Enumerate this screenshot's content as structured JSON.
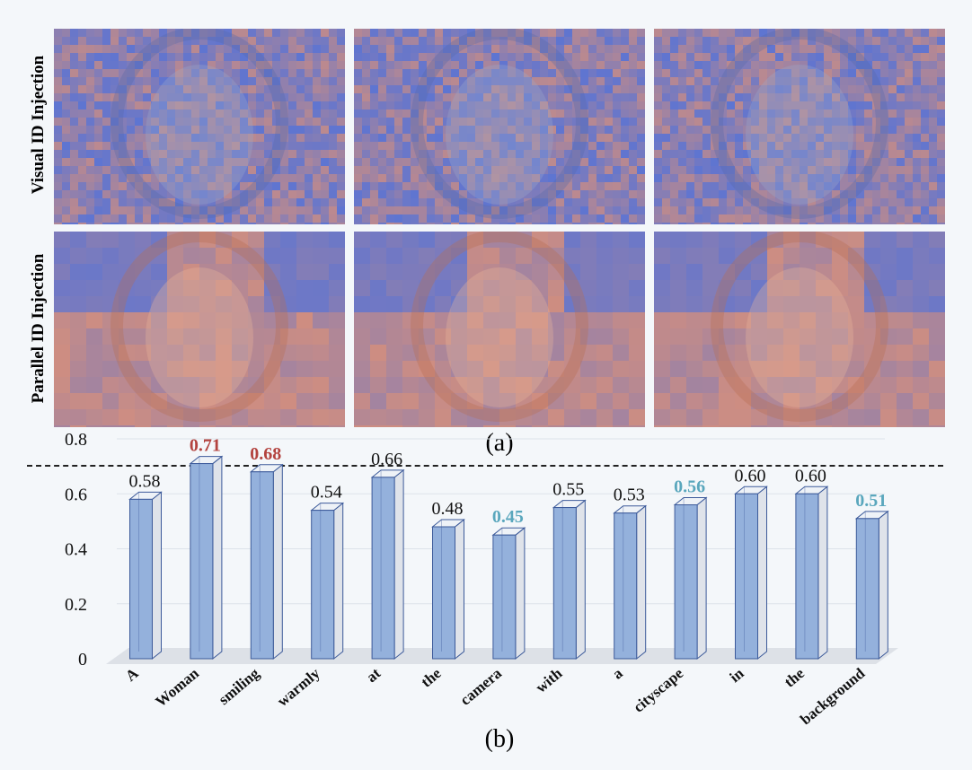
{
  "panel_a": {
    "row_labels": [
      "Visual ID Injection",
      "Parallel ID Injection"
    ],
    "caption": "(a)"
  },
  "panel_b": {
    "caption": "(b)"
  },
  "colors": {
    "bar_front": "#94b1dc",
    "bar_side": "#dfe3ea",
    "bar_top": "#eef2f7",
    "bar_edge": "#3c5a9a",
    "highlight_high": "#b3433f",
    "highlight_low": "#5aa7bd",
    "heat_cold": "#3a55c8",
    "heat_warm": "#e07a52"
  },
  "chart_data": {
    "type": "bar",
    "categories": [
      "A",
      "Woman",
      "smiling",
      "warmly",
      "at",
      "the",
      "camera",
      "with",
      "a",
      "cityscape",
      "in",
      "the",
      "background"
    ],
    "values": [
      0.58,
      0.71,
      0.68,
      0.54,
      0.66,
      0.48,
      0.45,
      0.55,
      0.53,
      0.56,
      0.6,
      0.6,
      0.51
    ],
    "value_labels": [
      "0.58",
      "0.71",
      "0.68",
      "0.54",
      "0.66",
      "0.48",
      "0.45",
      "0.55",
      "0.53",
      "0.56",
      "0.60",
      "0.60",
      "0.51"
    ],
    "label_style": [
      "normal",
      "high",
      "high",
      "normal",
      "normal",
      "normal",
      "low",
      "normal",
      "normal",
      "low",
      "normal",
      "normal",
      "low"
    ],
    "yticks": [
      "0",
      "0.2",
      "0.4",
      "0.6",
      "0.8"
    ],
    "ylim": [
      0,
      0.8
    ],
    "title": "",
    "xlabel": "",
    "ylabel": "",
    "grid": true,
    "legend": "none"
  }
}
